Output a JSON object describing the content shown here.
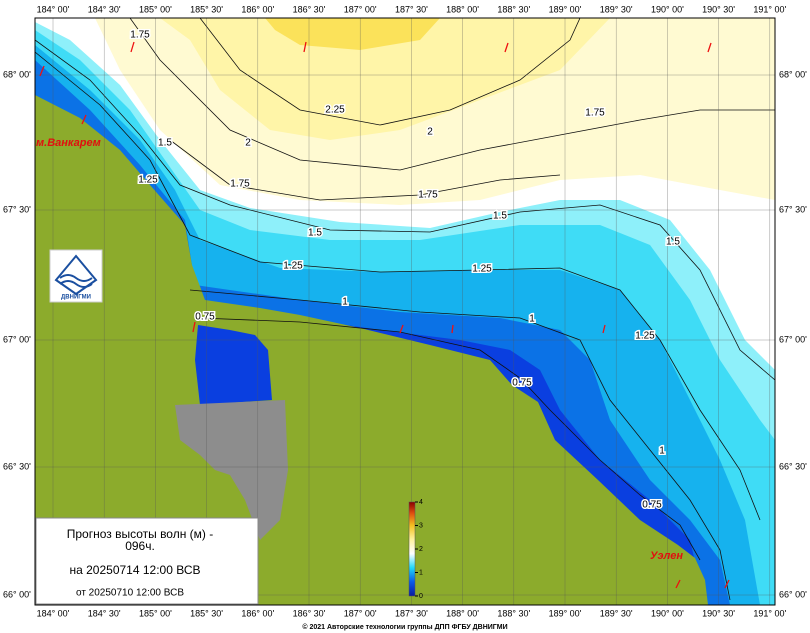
{
  "map": {
    "lon_ticks": [
      "184° 00'",
      "184° 30'",
      "185° 00'",
      "185° 30'",
      "186° 00'",
      "186° 30'",
      "187° 00'",
      "187° 30'",
      "188° 00'",
      "188° 30'",
      "189° 00'",
      "189° 30'",
      "190° 00'",
      "190° 30'",
      "191° 00'"
    ],
    "lat_ticks": [
      "68° 00'",
      "67° 30'",
      "67° 00'",
      "66° 30'",
      "66° 00'"
    ],
    "contour_labels": [
      "1.75",
      "2.25",
      "2",
      "1.75",
      "1.5",
      "1.75",
      "2",
      "1.75",
      "1.5",
      "1.25",
      "1.5",
      "1.5",
      "1.25",
      "1.25",
      "1",
      "1",
      "1.25",
      "0.75",
      "0.75",
      "1",
      "0.75"
    ],
    "places": [
      "м.Ванкарем",
      "Уэлен"
    ],
    "logo": "ДВНИГМИ",
    "info": {
      "line1": "Прогноз высоты волн (м) -",
      "line2": "096ч.",
      "line3": "на 20250714 12:00 ВСВ",
      "line4": "от 20250710 12:00 ВСВ"
    },
    "colorbar": {
      "ticks": [
        0,
        1,
        2,
        3,
        4
      ],
      "lim": [
        0,
        4
      ]
    },
    "copyright": "© 2021 Авторские технологии группы ДПП ФГБУ ДВНИГМИ"
  }
}
